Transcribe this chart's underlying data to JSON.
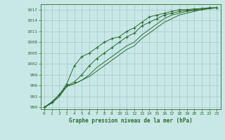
{
  "title": "Graphe pression niveau de la mer (hPa)",
  "background_color": "#c8e8e8",
  "line_color": "#2d6b2d",
  "grid_color": "#9bbfbf",
  "xlim": [
    -0.5,
    23.5
  ],
  "ylim": [
    989.5,
    1018.5
  ],
  "yticks": [
    990,
    993,
    996,
    999,
    1002,
    1005,
    1008,
    1011,
    1014,
    1017
  ],
  "xticks": [
    0,
    1,
    2,
    3,
    4,
    5,
    6,
    7,
    8,
    9,
    10,
    11,
    12,
    13,
    14,
    15,
    16,
    17,
    18,
    19,
    20,
    21,
    22,
    23
  ],
  "series_with_markers": [
    [
      990.0,
      991.5,
      993.5,
      996.5,
      1001.5,
      1004.0,
      1005.0,
      1006.5,
      1008.0,
      1009.0,
      1009.5,
      1011.0,
      1012.0,
      1013.5,
      1015.0,
      1015.5,
      1016.0,
      1016.5,
      1017.0,
      1017.0,
      1017.2,
      1017.3,
      1017.5,
      1017.5
    ],
    [
      990.0,
      991.5,
      993.5,
      996.0,
      997.0,
      999.0,
      1001.5,
      1003.5,
      1005.0,
      1006.5,
      1008.0,
      1009.5,
      1010.5,
      1012.5,
      1013.5,
      1014.5,
      1015.5,
      1016.0,
      1016.5,
      1016.8,
      1017.0,
      1017.2,
      1017.5,
      1017.5
    ]
  ],
  "series_no_markers": [
    [
      990.0,
      991.2,
      993.0,
      995.8,
      996.5,
      997.5,
      998.5,
      1000.0,
      1001.5,
      1003.0,
      1004.5,
      1006.0,
      1007.0,
      1009.0,
      1010.5,
      1012.0,
      1013.5,
      1014.5,
      1015.5,
      1016.0,
      1016.5,
      1017.0,
      1017.3,
      1017.5
    ],
    [
      990.0,
      991.2,
      993.0,
      995.8,
      996.5,
      997.5,
      999.0,
      1001.0,
      1002.5,
      1004.0,
      1005.5,
      1007.0,
      1008.0,
      1010.0,
      1011.5,
      1013.0,
      1014.5,
      1015.5,
      1016.0,
      1016.5,
      1016.8,
      1017.0,
      1017.3,
      1017.5
    ]
  ]
}
